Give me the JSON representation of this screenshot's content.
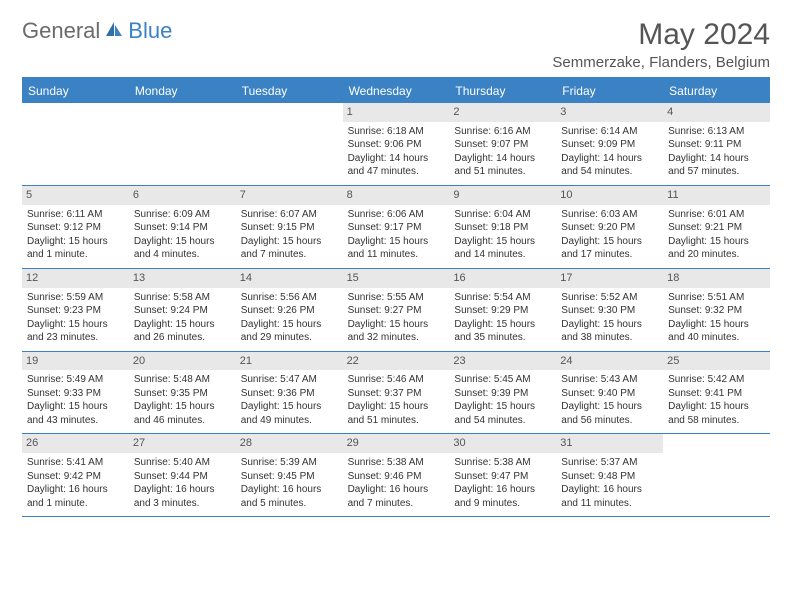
{
  "logo": {
    "part1": "General",
    "part2": "Blue"
  },
  "title": "May 2024",
  "location": "Semmerzake, Flanders, Belgium",
  "colors": {
    "accent": "#3b82c4",
    "dayhead_bg": "#3b82c4",
    "dayhead_text": "#ffffff",
    "daynum_bg": "#e8e8e8",
    "text": "#333333",
    "title_text": "#555555"
  },
  "days": [
    "Sunday",
    "Monday",
    "Tuesday",
    "Wednesday",
    "Thursday",
    "Friday",
    "Saturday"
  ],
  "weeks": [
    [
      {
        "n": "",
        "sunrise": "",
        "sunset": "",
        "daylight": ""
      },
      {
        "n": "",
        "sunrise": "",
        "sunset": "",
        "daylight": ""
      },
      {
        "n": "",
        "sunrise": "",
        "sunset": "",
        "daylight": ""
      },
      {
        "n": "1",
        "sunrise": "Sunrise: 6:18 AM",
        "sunset": "Sunset: 9:06 PM",
        "daylight": "Daylight: 14 hours and 47 minutes."
      },
      {
        "n": "2",
        "sunrise": "Sunrise: 6:16 AM",
        "sunset": "Sunset: 9:07 PM",
        "daylight": "Daylight: 14 hours and 51 minutes."
      },
      {
        "n": "3",
        "sunrise": "Sunrise: 6:14 AM",
        "sunset": "Sunset: 9:09 PM",
        "daylight": "Daylight: 14 hours and 54 minutes."
      },
      {
        "n": "4",
        "sunrise": "Sunrise: 6:13 AM",
        "sunset": "Sunset: 9:11 PM",
        "daylight": "Daylight: 14 hours and 57 minutes."
      }
    ],
    [
      {
        "n": "5",
        "sunrise": "Sunrise: 6:11 AM",
        "sunset": "Sunset: 9:12 PM",
        "daylight": "Daylight: 15 hours and 1 minute."
      },
      {
        "n": "6",
        "sunrise": "Sunrise: 6:09 AM",
        "sunset": "Sunset: 9:14 PM",
        "daylight": "Daylight: 15 hours and 4 minutes."
      },
      {
        "n": "7",
        "sunrise": "Sunrise: 6:07 AM",
        "sunset": "Sunset: 9:15 PM",
        "daylight": "Daylight: 15 hours and 7 minutes."
      },
      {
        "n": "8",
        "sunrise": "Sunrise: 6:06 AM",
        "sunset": "Sunset: 9:17 PM",
        "daylight": "Daylight: 15 hours and 11 minutes."
      },
      {
        "n": "9",
        "sunrise": "Sunrise: 6:04 AM",
        "sunset": "Sunset: 9:18 PM",
        "daylight": "Daylight: 15 hours and 14 minutes."
      },
      {
        "n": "10",
        "sunrise": "Sunrise: 6:03 AM",
        "sunset": "Sunset: 9:20 PM",
        "daylight": "Daylight: 15 hours and 17 minutes."
      },
      {
        "n": "11",
        "sunrise": "Sunrise: 6:01 AM",
        "sunset": "Sunset: 9:21 PM",
        "daylight": "Daylight: 15 hours and 20 minutes."
      }
    ],
    [
      {
        "n": "12",
        "sunrise": "Sunrise: 5:59 AM",
        "sunset": "Sunset: 9:23 PM",
        "daylight": "Daylight: 15 hours and 23 minutes."
      },
      {
        "n": "13",
        "sunrise": "Sunrise: 5:58 AM",
        "sunset": "Sunset: 9:24 PM",
        "daylight": "Daylight: 15 hours and 26 minutes."
      },
      {
        "n": "14",
        "sunrise": "Sunrise: 5:56 AM",
        "sunset": "Sunset: 9:26 PM",
        "daylight": "Daylight: 15 hours and 29 minutes."
      },
      {
        "n": "15",
        "sunrise": "Sunrise: 5:55 AM",
        "sunset": "Sunset: 9:27 PM",
        "daylight": "Daylight: 15 hours and 32 minutes."
      },
      {
        "n": "16",
        "sunrise": "Sunrise: 5:54 AM",
        "sunset": "Sunset: 9:29 PM",
        "daylight": "Daylight: 15 hours and 35 minutes."
      },
      {
        "n": "17",
        "sunrise": "Sunrise: 5:52 AM",
        "sunset": "Sunset: 9:30 PM",
        "daylight": "Daylight: 15 hours and 38 minutes."
      },
      {
        "n": "18",
        "sunrise": "Sunrise: 5:51 AM",
        "sunset": "Sunset: 9:32 PM",
        "daylight": "Daylight: 15 hours and 40 minutes."
      }
    ],
    [
      {
        "n": "19",
        "sunrise": "Sunrise: 5:49 AM",
        "sunset": "Sunset: 9:33 PM",
        "daylight": "Daylight: 15 hours and 43 minutes."
      },
      {
        "n": "20",
        "sunrise": "Sunrise: 5:48 AM",
        "sunset": "Sunset: 9:35 PM",
        "daylight": "Daylight: 15 hours and 46 minutes."
      },
      {
        "n": "21",
        "sunrise": "Sunrise: 5:47 AM",
        "sunset": "Sunset: 9:36 PM",
        "daylight": "Daylight: 15 hours and 49 minutes."
      },
      {
        "n": "22",
        "sunrise": "Sunrise: 5:46 AM",
        "sunset": "Sunset: 9:37 PM",
        "daylight": "Daylight: 15 hours and 51 minutes."
      },
      {
        "n": "23",
        "sunrise": "Sunrise: 5:45 AM",
        "sunset": "Sunset: 9:39 PM",
        "daylight": "Daylight: 15 hours and 54 minutes."
      },
      {
        "n": "24",
        "sunrise": "Sunrise: 5:43 AM",
        "sunset": "Sunset: 9:40 PM",
        "daylight": "Daylight: 15 hours and 56 minutes."
      },
      {
        "n": "25",
        "sunrise": "Sunrise: 5:42 AM",
        "sunset": "Sunset: 9:41 PM",
        "daylight": "Daylight: 15 hours and 58 minutes."
      }
    ],
    [
      {
        "n": "26",
        "sunrise": "Sunrise: 5:41 AM",
        "sunset": "Sunset: 9:42 PM",
        "daylight": "Daylight: 16 hours and 1 minute."
      },
      {
        "n": "27",
        "sunrise": "Sunrise: 5:40 AM",
        "sunset": "Sunset: 9:44 PM",
        "daylight": "Daylight: 16 hours and 3 minutes."
      },
      {
        "n": "28",
        "sunrise": "Sunrise: 5:39 AM",
        "sunset": "Sunset: 9:45 PM",
        "daylight": "Daylight: 16 hours and 5 minutes."
      },
      {
        "n": "29",
        "sunrise": "Sunrise: 5:38 AM",
        "sunset": "Sunset: 9:46 PM",
        "daylight": "Daylight: 16 hours and 7 minutes."
      },
      {
        "n": "30",
        "sunrise": "Sunrise: 5:38 AM",
        "sunset": "Sunset: 9:47 PM",
        "daylight": "Daylight: 16 hours and 9 minutes."
      },
      {
        "n": "31",
        "sunrise": "Sunrise: 5:37 AM",
        "sunset": "Sunset: 9:48 PM",
        "daylight": "Daylight: 16 hours and 11 minutes."
      },
      {
        "n": "",
        "sunrise": "",
        "sunset": "",
        "daylight": ""
      }
    ]
  ]
}
